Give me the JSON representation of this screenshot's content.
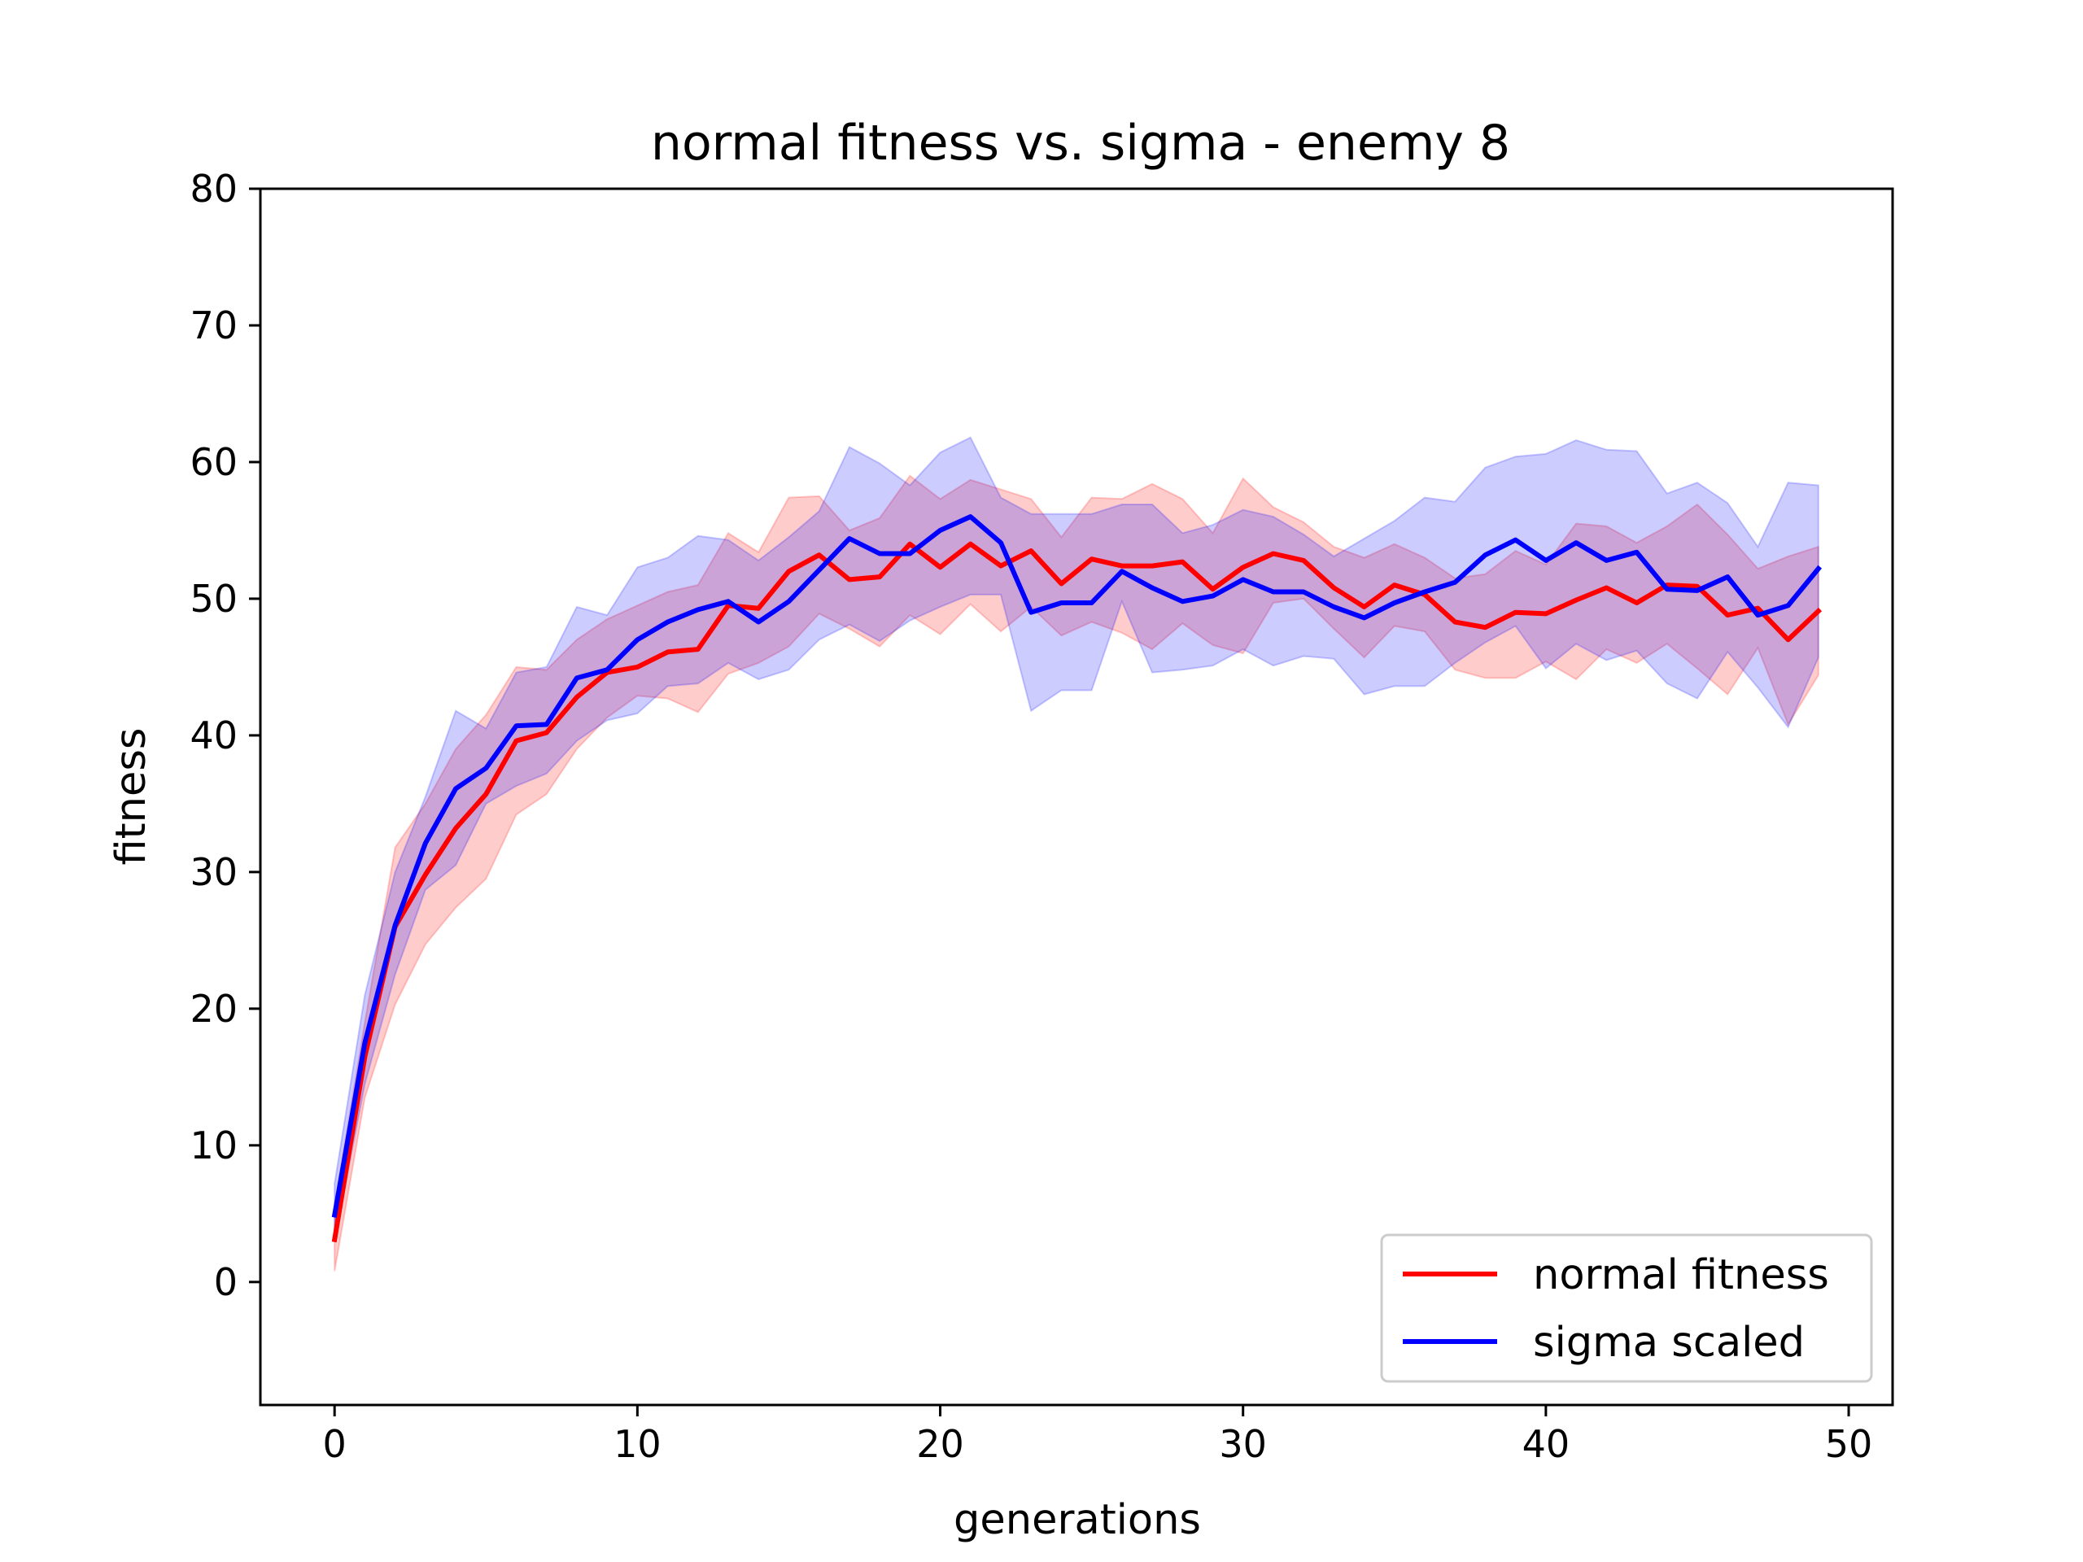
{
  "chart_data": {
    "type": "line",
    "title": "normal fitness vs. sigma - enemy 8",
    "xlabel": "generations",
    "ylabel": "fitness",
    "xlim": [
      -2.45,
      51.45
    ],
    "ylim": [
      -9,
      80
    ],
    "xticks": [
      0,
      10,
      20,
      30,
      40,
      50
    ],
    "yticks": [
      0,
      10,
      20,
      30,
      40,
      50,
      60,
      70,
      80
    ],
    "grid": false,
    "legend_position": "lower right",
    "x": [
      0,
      1,
      2,
      3,
      4,
      5,
      6,
      7,
      8,
      9,
      10,
      11,
      12,
      13,
      14,
      15,
      16,
      17,
      18,
      19,
      20,
      21,
      22,
      23,
      24,
      25,
      26,
      27,
      28,
      29,
      30,
      31,
      32,
      33,
      34,
      35,
      36,
      37,
      38,
      39,
      40,
      41,
      42,
      43,
      44,
      45,
      46,
      47,
      48,
      49
    ],
    "series": [
      {
        "name": "normal fitness",
        "color": "#ff0000",
        "values": [
          3.1,
          16.5,
          26.0,
          29.8,
          33.2,
          35.7,
          39.6,
          40.2,
          42.8,
          44.6,
          45.0,
          46.1,
          46.3,
          49.5,
          49.3,
          52.0,
          53.2,
          51.4,
          51.6,
          54.0,
          52.3,
          54.0,
          52.4,
          53.5,
          51.1,
          52.9,
          52.4,
          52.4,
          52.7,
          50.7,
          52.3,
          53.3,
          52.8,
          50.8,
          49.4,
          51.0,
          50.3,
          48.3,
          47.9,
          49.0,
          48.9,
          49.9,
          50.8,
          49.7,
          51.0,
          50.9,
          48.8,
          49.3,
          47.0,
          49.1
        ],
        "upper": [
          5.5,
          19.0,
          31.8,
          35.0,
          39.0,
          41.5,
          45.0,
          44.8,
          47.0,
          48.5,
          49.5,
          50.5,
          51.0,
          54.8,
          53.4,
          57.4,
          57.5,
          55.0,
          55.9,
          59.0,
          57.3,
          58.7,
          58.0,
          57.3,
          54.5,
          57.4,
          57.3,
          58.4,
          57.3,
          54.8,
          58.8,
          56.7,
          55.6,
          53.8,
          53.0,
          54.0,
          53.0,
          51.5,
          51.8,
          53.5,
          52.5,
          55.5,
          55.3,
          54.1,
          55.3,
          56.9,
          54.7,
          52.2,
          53.1,
          53.8
        ],
        "lower": [
          0.8,
          13.5,
          20.3,
          24.7,
          27.4,
          29.5,
          34.2,
          35.7,
          39.0,
          41.3,
          42.9,
          42.7,
          41.7,
          44.5,
          45.3,
          46.5,
          48.9,
          47.8,
          46.5,
          48.8,
          47.4,
          49.6,
          47.6,
          49.4,
          47.3,
          48.3,
          47.5,
          46.3,
          48.2,
          46.6,
          46.0,
          49.7,
          50.0,
          47.8,
          45.7,
          48.0,
          47.6,
          44.8,
          44.2,
          44.2,
          45.4,
          44.1,
          46.3,
          45.3,
          46.7,
          44.9,
          43.0,
          46.4,
          40.8,
          44.4
        ]
      },
      {
        "name": "sigma scaled",
        "color": "#0000ff",
        "values": [
          4.9,
          17.5,
          26.1,
          32.1,
          36.1,
          37.6,
          40.7,
          40.8,
          44.2,
          44.8,
          47.0,
          48.3,
          49.2,
          49.8,
          48.3,
          49.8,
          52.1,
          54.4,
          53.3,
          53.3,
          55.0,
          56.0,
          54.1,
          49.0,
          49.7,
          49.7,
          52.0,
          50.8,
          49.8,
          50.2,
          51.4,
          50.5,
          50.5,
          49.4,
          48.6,
          49.7,
          50.5,
          51.2,
          53.2,
          54.3,
          52.8,
          54.1,
          52.8,
          53.4,
          50.7,
          50.6,
          51.6,
          48.8,
          49.5,
          52.2
        ],
        "upper": [
          7.2,
          21.0,
          30.0,
          35.5,
          41.8,
          40.5,
          44.6,
          45.0,
          49.4,
          48.8,
          52.3,
          53.0,
          54.6,
          54.3,
          52.8,
          54.5,
          56.4,
          61.1,
          59.9,
          58.3,
          60.7,
          61.8,
          57.4,
          56.2,
          56.2,
          56.2,
          56.9,
          56.9,
          54.8,
          55.4,
          56.5,
          56.0,
          54.7,
          53.1,
          54.4,
          55.7,
          57.4,
          57.1,
          59.6,
          60.4,
          60.6,
          61.6,
          60.9,
          60.8,
          57.7,
          58.5,
          57.0,
          53.8,
          58.5,
          58.3
        ],
        "lower": [
          3.0,
          14.5,
          22.5,
          28.7,
          30.5,
          35.0,
          36.3,
          37.2,
          39.6,
          41.1,
          41.6,
          43.6,
          43.8,
          45.3,
          44.1,
          44.8,
          47.0,
          48.1,
          46.9,
          48.4,
          49.4,
          50.3,
          50.3,
          41.8,
          43.3,
          43.3,
          49.8,
          44.6,
          44.8,
          45.1,
          46.3,
          45.1,
          45.8,
          45.6,
          43.0,
          43.6,
          43.6,
          45.3,
          46.8,
          48.0,
          44.9,
          46.7,
          45.5,
          46.2,
          43.8,
          42.7,
          46.1,
          43.5,
          40.6,
          45.7
        ]
      }
    ]
  }
}
